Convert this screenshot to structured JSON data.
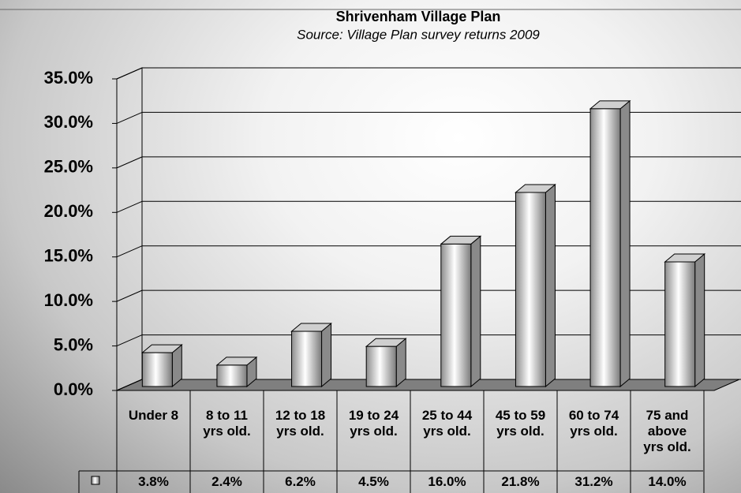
{
  "chart_data": {
    "type": "bar3d",
    "title": "Shrivenham Village Plan",
    "subtitle": "Source: Village Plan survey returns 2009",
    "categories": [
      "Under 8",
      "8 to 11 yrs old.",
      "12 to 18 yrs old.",
      "19 to 24 yrs old.",
      "25 to 44 yrs old.",
      "45 to 59 yrs old.",
      "60 to 74 yrs old.",
      "75 and above yrs old."
    ],
    "values": [
      3.8,
      2.4,
      6.2,
      4.5,
      16.0,
      21.8,
      31.2,
      14.0
    ],
    "value_labels": [
      "3.8%",
      "2.4%",
      "6.2%",
      "4.5%",
      "16.0%",
      "21.8%",
      "31.2%",
      "14.0%"
    ],
    "color": "#e8e8e8",
    "ylim": [
      0,
      35
    ],
    "yticks": [
      {
        "value": 0,
        "label": "0.0%"
      },
      {
        "value": 5,
        "label": "5.0%"
      },
      {
        "value": 10,
        "label": "10.0%"
      },
      {
        "value": 15,
        "label": "15.0%"
      },
      {
        "value": 20,
        "label": "20.0%"
      },
      {
        "value": 25,
        "label": "25.0%"
      },
      {
        "value": 30,
        "label": "30.0%"
      },
      {
        "value": 35,
        "label": "35.0%"
      }
    ],
    "grid": true,
    "data_table": true
  }
}
